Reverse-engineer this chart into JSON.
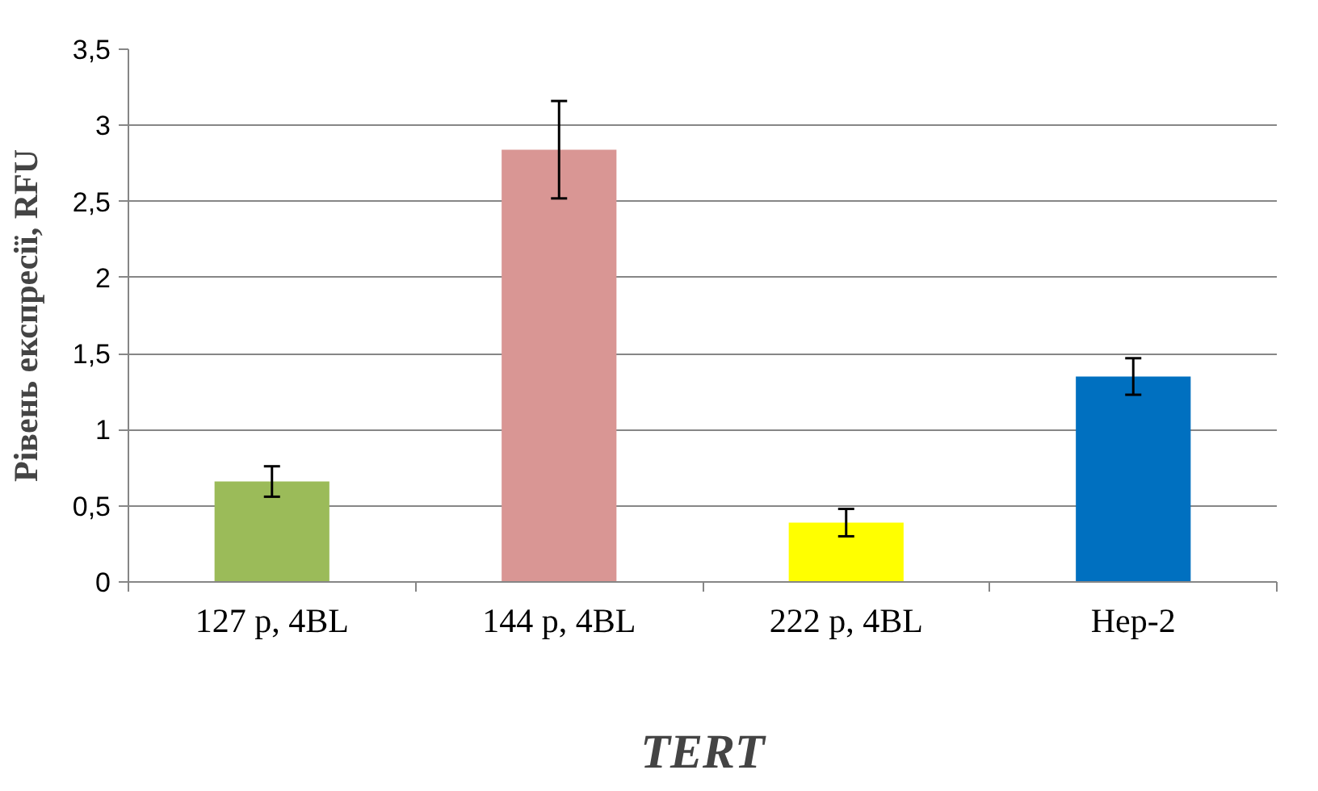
{
  "chart_data": {
    "type": "bar",
    "xlabel": "TERT",
    "ylabel": "Рівень експресії, RFU",
    "categories": [
      "127 р, 4BL",
      "144 р, 4BL",
      "222 р, 4BL",
      "Hep-2"
    ],
    "values": [
      0.66,
      2.84,
      0.39,
      1.35
    ],
    "errors": [
      0.1,
      0.32,
      0.09,
      0.12
    ],
    "colors": [
      "#9bbb59",
      "#d99694",
      "#ffff00",
      "#0070c0"
    ],
    "ylim": [
      0,
      3.5
    ],
    "yticks": [
      0,
      {
        "value": 0.5,
        "label": "0,5"
      },
      1,
      {
        "value": 1.5,
        "label": "1,5"
      },
      2,
      {
        "value": 2.5,
        "label": "2,5"
      },
      3,
      {
        "value": 3.5,
        "label": "3,5"
      }
    ],
    "grid": "y"
  }
}
